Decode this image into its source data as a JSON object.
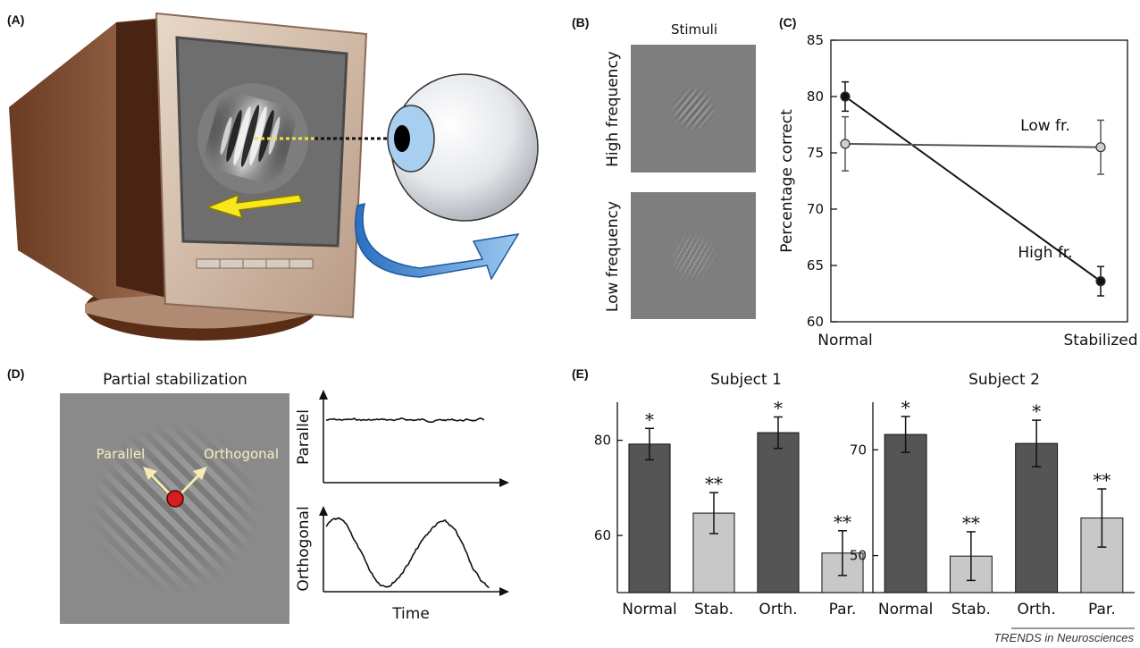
{
  "panels": {
    "a": "(A)",
    "b": "(B)",
    "c": "(C)",
    "d": "(D)",
    "e": "(E)"
  },
  "panel_b": {
    "title": "Stimuli",
    "high_label": "High frequency",
    "low_label": "Low frequency"
  },
  "panel_d": {
    "title": "Partial stabilization",
    "arrow_left": "Parallel",
    "arrow_right": "Orthogonal",
    "trace_top_label": "Parallel",
    "trace_bottom_label": "Orthogonal",
    "time_label": "Time"
  },
  "credit": "TRENDS in Neurosciences",
  "colors": {
    "dark_bar": "#555555",
    "light_bar": "#c8c8c8",
    "high_line": "#111111",
    "low_line": "#555555",
    "low_marker": "#cfcfcf"
  },
  "chart_data": [
    {
      "type": "line",
      "panel": "C",
      "categories": [
        "Normal",
        "Stabilized"
      ],
      "ylabel": "Percentage correct",
      "ylim": [
        60,
        85
      ],
      "yticks": [
        60,
        65,
        70,
        75,
        80,
        85
      ],
      "series": [
        {
          "name": "High fr.",
          "values": [
            80.0,
            63.6
          ],
          "errors": [
            1.3,
            1.3
          ]
        },
        {
          "name": "Low fr.",
          "values": [
            75.8,
            75.5
          ],
          "errors": [
            2.4,
            2.4
          ]
        }
      ]
    },
    {
      "type": "bar",
      "panel": "E",
      "title": "Subject 1",
      "categories": [
        "Normal",
        "Stab.",
        "Orth.",
        "Par."
      ],
      "values": [
        79.2,
        64.7,
        81.6,
        56.3
      ],
      "errors": [
        3.3,
        4.3,
        3.3,
        4.7
      ],
      "significance": [
        "*",
        "**",
        "*",
        "**"
      ],
      "yticks": [
        60,
        80
      ],
      "ylim": [
        48,
        88
      ]
    },
    {
      "type": "bar",
      "panel": "E",
      "title": "Subject 2",
      "categories": [
        "Normal",
        "Stab.",
        "Orth.",
        "Par."
      ],
      "values": [
        72.9,
        49.9,
        71.2,
        57.1
      ],
      "errors": [
        3.4,
        4.6,
        4.4,
        5.5
      ],
      "significance": [
        "*",
        "**",
        "*",
        "**"
      ],
      "yticks": [
        50,
        70
      ],
      "ylim": [
        43,
        79
      ]
    }
  ]
}
